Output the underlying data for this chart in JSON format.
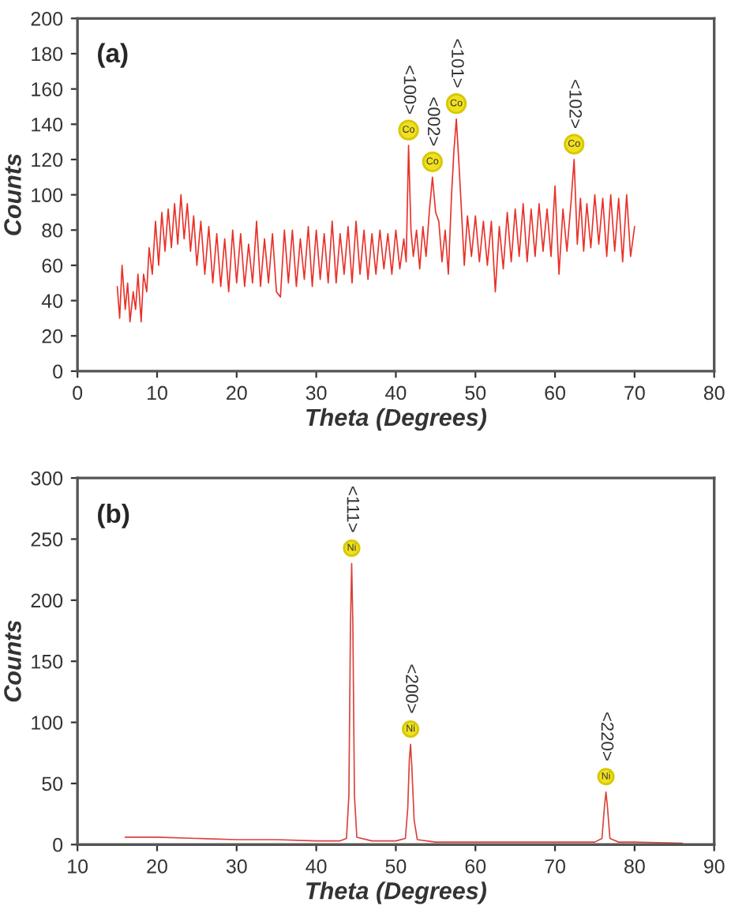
{
  "chart_data": [
    {
      "type": "line",
      "xlabel": "Theta (Degrees)",
      "ylabel": "Counts",
      "xlim": [
        0,
        80
      ],
      "xticks": [
        0,
        10,
        20,
        30,
        40,
        50,
        60,
        70,
        80
      ],
      "ylim": [
        0,
        200
      ],
      "yticks": [
        0,
        20,
        40,
        60,
        80,
        100,
        120,
        140,
        160,
        180,
        200
      ],
      "grid": false,
      "legend": false,
      "annotations": [
        "(a)",
        {
          "text": "Co",
          "x": 41.6,
          "y": 128
        },
        {
          "text": "<100>",
          "x": 41.6,
          "y": 128
        },
        {
          "text": "Co",
          "x": 44.6,
          "y": 110
        },
        {
          "text": "<002>",
          "x": 44.6,
          "y": 110
        },
        {
          "text": "Co",
          "x": 47.6,
          "y": 143
        },
        {
          "text": "<101>",
          "x": 47.6,
          "y": 143
        },
        {
          "text": "Co",
          "x": 62.4,
          "y": 120
        },
        {
          "text": "<102>",
          "x": 62.4,
          "y": 120
        }
      ],
      "series": [
        {
          "color": "#e8322a",
          "x": [
            5.0,
            5.3,
            5.6,
            6.0,
            6.3,
            6.6,
            7.0,
            7.3,
            7.6,
            8.0,
            8.3,
            8.7,
            9.0,
            9.4,
            9.8,
            10.2,
            10.6,
            11.0,
            11.4,
            11.8,
            12.2,
            12.6,
            13.0,
            13.4,
            13.8,
            14.2,
            14.6,
            15.0,
            15.5,
            16.0,
            16.5,
            17.0,
            17.5,
            18.0,
            18.5,
            19.0,
            19.5,
            20.0,
            20.5,
            21.0,
            21.5,
            22.0,
            22.5,
            23.0,
            23.5,
            24.0,
            24.5,
            25.0,
            25.5,
            26.0,
            26.5,
            27.0,
            27.5,
            28.0,
            28.5,
            29.0,
            29.5,
            30.0,
            30.5,
            31.0,
            31.5,
            32.0,
            32.5,
            33.0,
            33.5,
            34.0,
            34.5,
            35.0,
            35.5,
            36.0,
            36.5,
            37.0,
            37.5,
            38.0,
            38.5,
            39.0,
            39.5,
            40.0,
            40.5,
            41.0,
            41.3,
            41.6,
            41.9,
            42.2,
            42.6,
            43.0,
            43.4,
            43.8,
            44.2,
            44.6,
            45.0,
            45.4,
            45.8,
            46.2,
            46.6,
            47.0,
            47.3,
            47.6,
            47.9,
            48.2,
            48.6,
            49.0,
            49.5,
            50.0,
            50.5,
            51.0,
            51.5,
            52.0,
            52.5,
            53.0,
            53.5,
            54.0,
            54.5,
            55.0,
            55.5,
            56.0,
            56.5,
            57.0,
            57.5,
            58.0,
            58.5,
            59.0,
            59.5,
            60.0,
            60.5,
            61.0,
            61.5,
            62.0,
            62.4,
            62.8,
            63.2,
            63.6,
            64.0,
            64.5,
            65.0,
            65.5,
            66.0,
            66.5,
            67.0,
            67.5,
            68.0,
            68.5,
            69.0,
            69.5,
            70.0
          ],
          "values": [
            48,
            30,
            60,
            35,
            50,
            28,
            45,
            35,
            55,
            28,
            55,
            45,
            70,
            55,
            85,
            60,
            90,
            68,
            92,
            70,
            95,
            72,
            100,
            75,
            95,
            68,
            88,
            60,
            85,
            55,
            82,
            50,
            78,
            48,
            75,
            45,
            80,
            50,
            78,
            48,
            72,
            50,
            85,
            48,
            75,
            50,
            78,
            45,
            42,
            80,
            50,
            80,
            48,
            75,
            52,
            82,
            48,
            80,
            52,
            78,
            50,
            85,
            50,
            78,
            55,
            82,
            50,
            85,
            55,
            80,
            52,
            78,
            55,
            80,
            58,
            78,
            55,
            80,
            58,
            75,
            62,
            128,
            80,
            65,
            80,
            58,
            82,
            65,
            90,
            110,
            90,
            85,
            62,
            80,
            55,
            100,
            125,
            143,
            120,
            95,
            60,
            88,
            65,
            88,
            62,
            85,
            60,
            85,
            45,
            82,
            58,
            90,
            62,
            92,
            65,
            95,
            62,
            92,
            65,
            95,
            68,
            92,
            65,
            105,
            55,
            92,
            68,
            95,
            120,
            72,
            98,
            68,
            95,
            70,
            100,
            72,
            98,
            65,
            100,
            68,
            98,
            62,
            100,
            65,
            82
          ]
        }
      ]
    },
    {
      "type": "line",
      "xlabel": "Theta (Degrees)",
      "ylabel": "Counts",
      "xlim": [
        10,
        90
      ],
      "xticks": [
        10,
        20,
        30,
        40,
        50,
        60,
        70,
        80,
        90
      ],
      "ylim": [
        0,
        300
      ],
      "yticks": [
        0,
        50,
        100,
        150,
        200,
        250,
        300
      ],
      "grid": false,
      "legend": false,
      "annotations": [
        "(b)",
        {
          "text": "Ni",
          "x": 44.45,
          "y": 230
        },
        {
          "text": "<111>",
          "x": 44.45,
          "y": 230
        },
        {
          "text": "Ni",
          "x": 51.85,
          "y": 82
        },
        {
          "text": "<200>",
          "x": 51.85,
          "y": 82
        },
        {
          "text": "Ni",
          "x": 76.4,
          "y": 43
        },
        {
          "text": "<220>",
          "x": 76.4,
          "y": 43
        }
      ],
      "series": [
        {
          "color": "#d9423a",
          "x": [
            16,
            20,
            25,
            30,
            35,
            40,
            43,
            43.8,
            44.1,
            44.3,
            44.45,
            44.6,
            44.8,
            45.1,
            47,
            50,
            51.2,
            51.5,
            51.7,
            51.85,
            52,
            52.3,
            52.7,
            55,
            60,
            65,
            70,
            75,
            75.9,
            76.2,
            76.4,
            76.6,
            76.9,
            78,
            80,
            86
          ],
          "values": [
            6,
            6,
            5,
            4,
            4,
            3,
            3,
            5,
            40,
            180,
            230,
            180,
            40,
            6,
            3,
            3,
            5,
            30,
            70,
            82,
            65,
            20,
            4,
            2,
            2,
            2,
            2,
            2,
            5,
            30,
            43,
            30,
            5,
            2,
            2,
            1
          ]
        }
      ]
    }
  ]
}
